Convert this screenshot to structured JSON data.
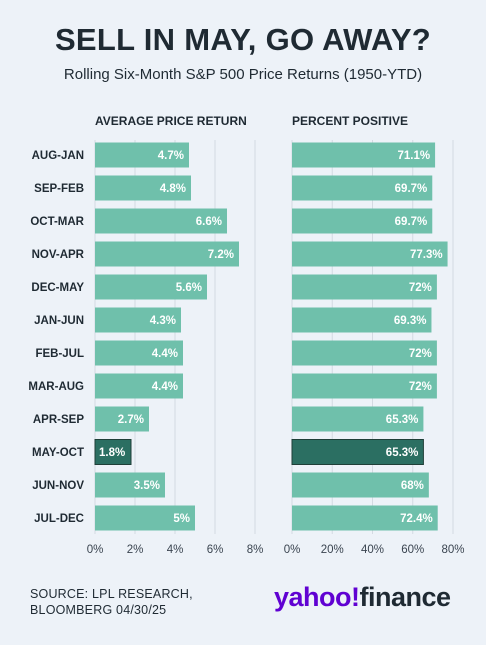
{
  "title": "SELL IN MAY, GO AWAY?",
  "subtitle": "Rolling Six-Month S&P 500 Price Returns (1950-YTD)",
  "source_line1": "SOURCE: LPL RESEARCH,",
  "source_line2": "BLOOMBERG 04/30/25",
  "logo_yahoo": "yahoo!",
  "logo_finance": "finance",
  "colors": {
    "bar": "#6fc0ab",
    "highlight": "#2b6f62",
    "background": "#edf2f8",
    "grid": "#d4dae2",
    "text": "#1f2a33"
  },
  "chart_data": [
    {
      "type": "bar",
      "orientation": "horizontal",
      "title": "AVERAGE PRICE RETURN",
      "categories": [
        "AUG-JAN",
        "SEP-FEB",
        "OCT-MAR",
        "NOV-APR",
        "DEC-MAY",
        "JAN-JUN",
        "FEB-JUL",
        "MAR-AUG",
        "APR-SEP",
        "MAY-OCT",
        "JUN-NOV",
        "JUL-DEC"
      ],
      "values": [
        4.7,
        4.8,
        6.6,
        7.2,
        5.6,
        4.3,
        4.4,
        4.4,
        2.7,
        1.8,
        3.5,
        5.0
      ],
      "labels": [
        "4.7%",
        "4.8%",
        "6.6%",
        "7.2%",
        "5.6%",
        "4.3%",
        "4.4%",
        "4.4%",
        "2.7%",
        "1.8%",
        "3.5%",
        "5%"
      ],
      "highlight": "MAY-OCT",
      "xlim": [
        0,
        8
      ],
      "ticks": [
        "0%",
        "2%",
        "4%",
        "6%",
        "8%"
      ],
      "grid": true
    },
    {
      "type": "bar",
      "orientation": "horizontal",
      "title": "PERCENT POSITIVE",
      "categories": [
        "AUG-JAN",
        "SEP-FEB",
        "OCT-MAR",
        "NOV-APR",
        "DEC-MAY",
        "JAN-JUN",
        "FEB-JUL",
        "MAR-AUG",
        "APR-SEP",
        "MAY-OCT",
        "JUN-NOV",
        "JUL-DEC"
      ],
      "values": [
        71.1,
        69.7,
        69.7,
        77.3,
        72,
        69.3,
        72,
        72,
        65.3,
        65.3,
        68,
        72.4
      ],
      "labels": [
        "71.1%",
        "69.7%",
        "69.7%",
        "77.3%",
        "72%",
        "69.3%",
        "72%",
        "72%",
        "65.3%",
        "65.3%",
        "68%",
        "72.4%"
      ],
      "highlight": "MAY-OCT",
      "xlim": [
        0,
        80
      ],
      "ticks": [
        "0%",
        "20%",
        "40%",
        "60%",
        "80%"
      ],
      "grid": true
    }
  ]
}
